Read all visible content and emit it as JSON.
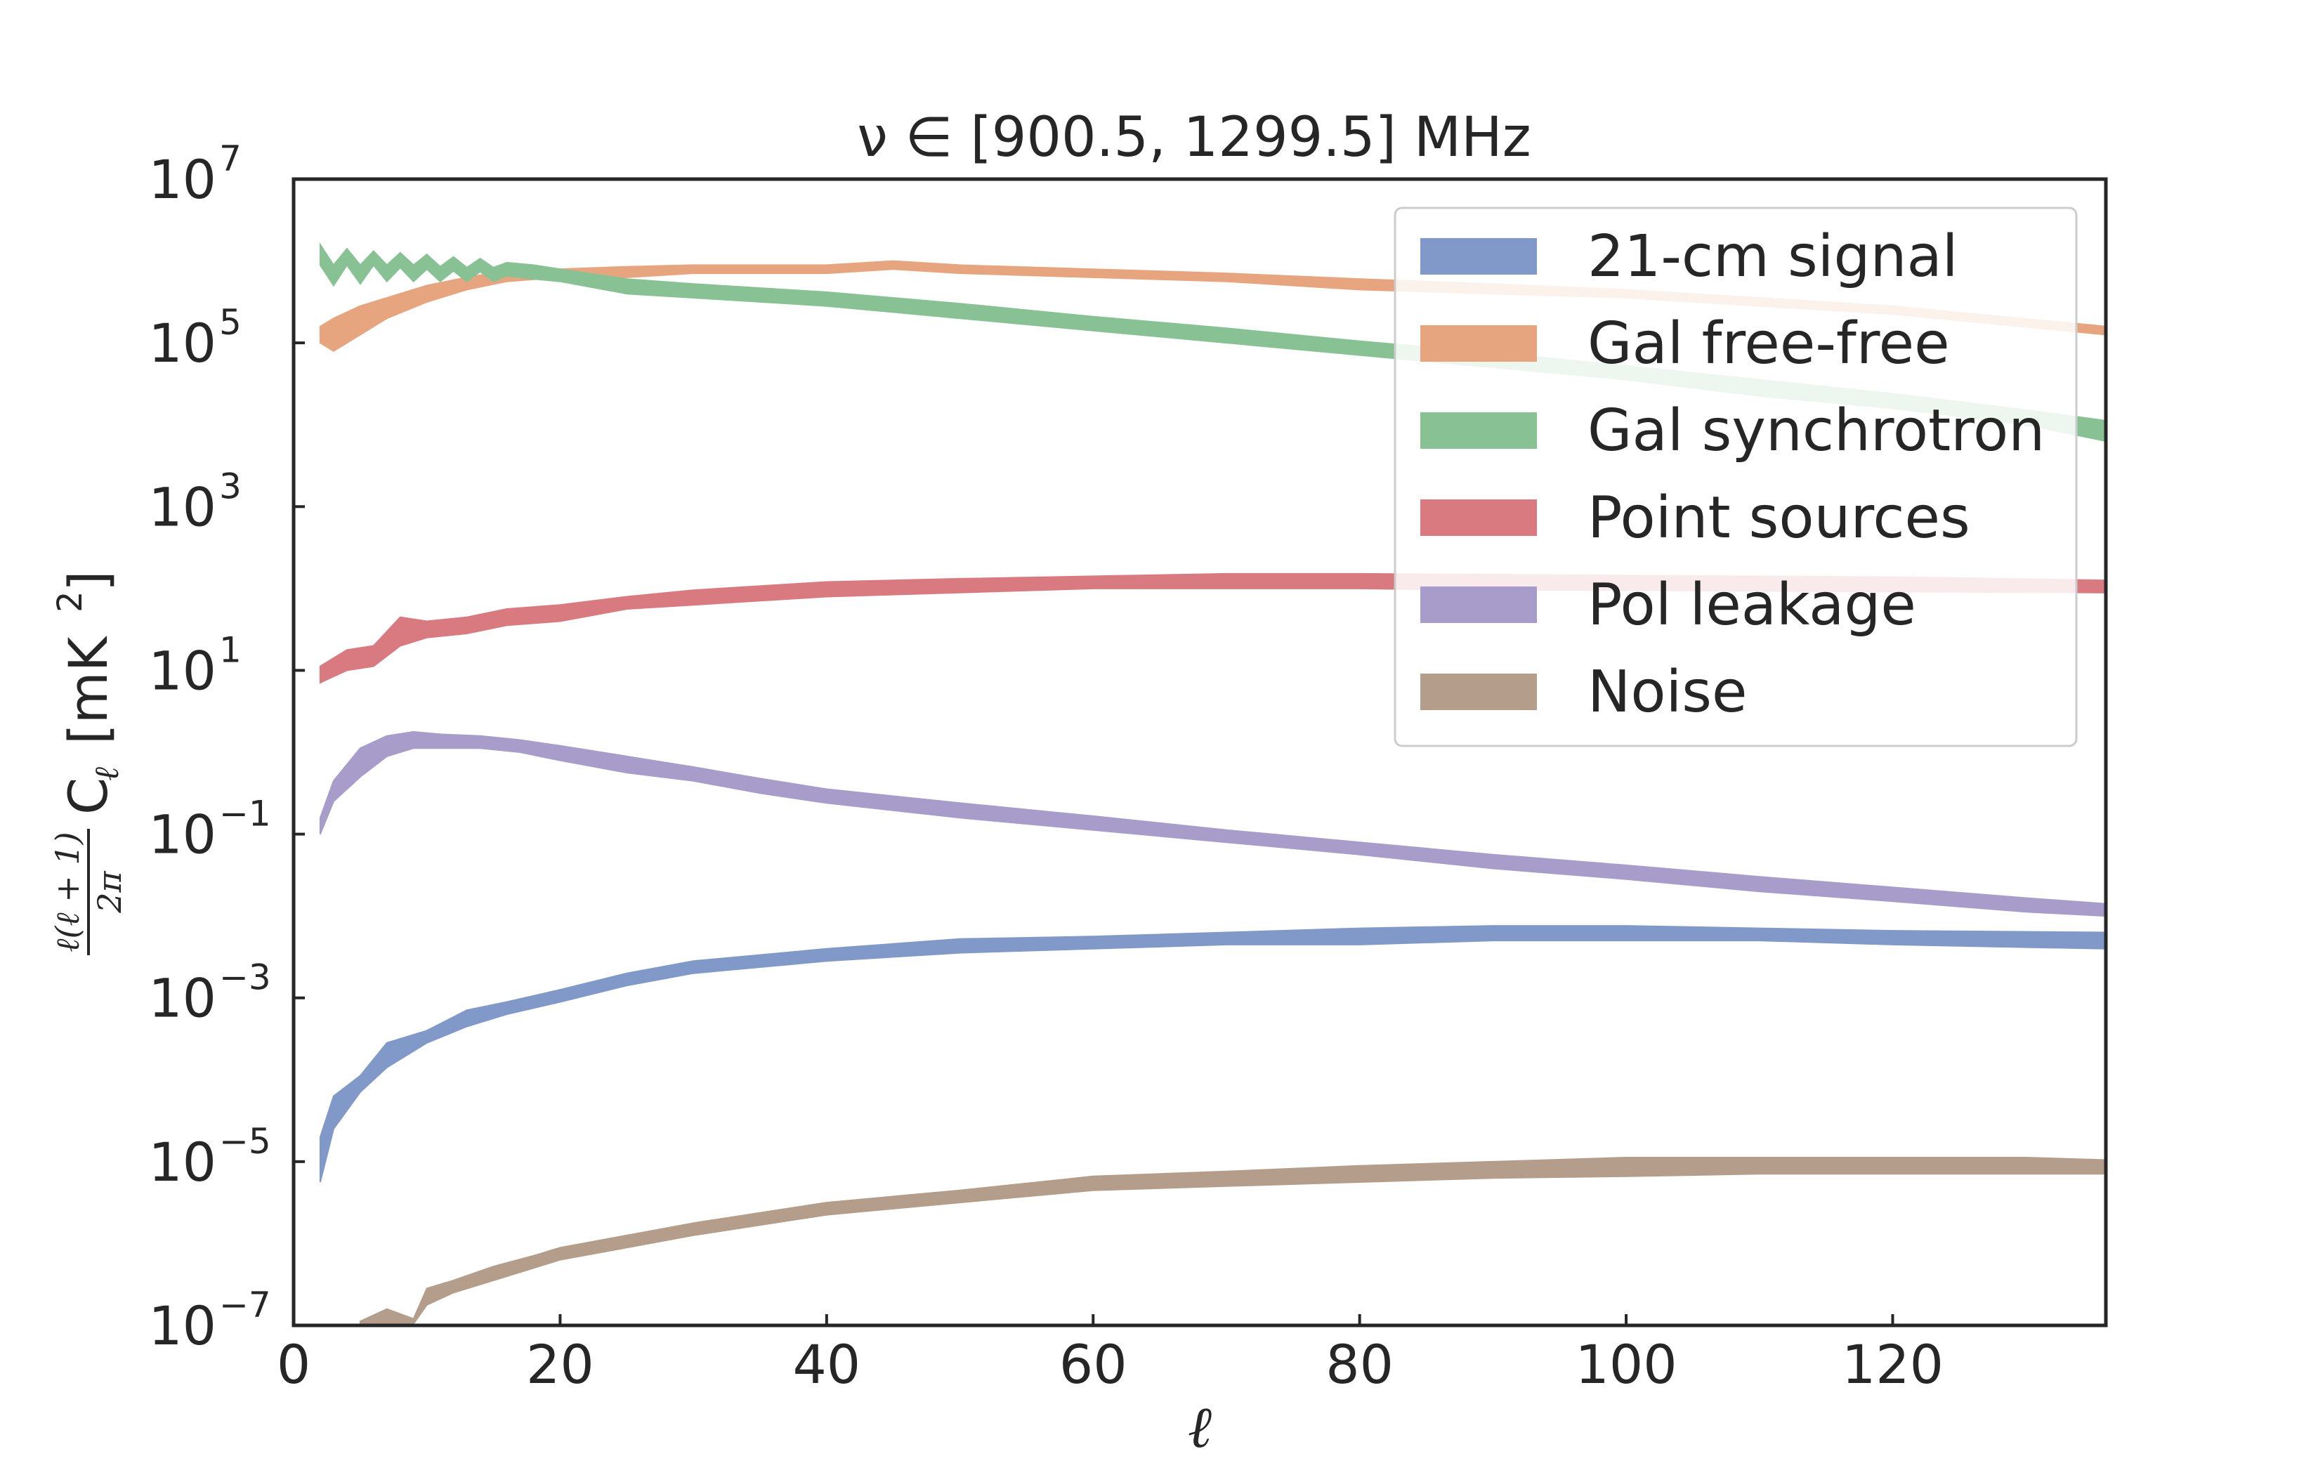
{
  "chart_data": {
    "type": "area",
    "title": "ν ∈ [900.5, 1299.5] MHz",
    "xlabel": "ℓ",
    "ylabel_fraction_top": "ℓ(ℓ + 1)",
    "ylabel_fraction_bottom": "2π",
    "ylabel_rest": "C",
    "ylabel_sub": "ℓ",
    "ylabel_units": "[mK",
    "ylabel_units_sup": "2",
    "ylabel_units_close": "]",
    "xlim": [
      0,
      136
    ],
    "ylim_log10": [
      -7,
      7
    ],
    "yscale": "log",
    "grid": false,
    "legend_position": "top-right",
    "x_ticks": [
      {
        "value": 0,
        "label": "0"
      },
      {
        "value": 20,
        "label": "20"
      },
      {
        "value": 40,
        "label": "40"
      },
      {
        "value": 60,
        "label": "60"
      },
      {
        "value": 80,
        "label": "80"
      },
      {
        "value": 100,
        "label": "100"
      },
      {
        "value": 120,
        "label": "120"
      }
    ],
    "y_ticks": [
      {
        "value": 7,
        "base": "10",
        "exp": "7"
      },
      {
        "value": 5,
        "base": "10",
        "exp": "5"
      },
      {
        "value": 3,
        "base": "10",
        "exp": "3"
      },
      {
        "value": 1,
        "base": "10",
        "exp": "1"
      },
      {
        "value": -1,
        "base": "10",
        "exp": "−1"
      },
      {
        "value": -3,
        "base": "10",
        "exp": "−3"
      },
      {
        "value": -5,
        "base": "10",
        "exp": "−5"
      },
      {
        "value": -7,
        "base": "10",
        "exp": "−7"
      }
    ],
    "band_note": "log10 values; each series drawn as a band between low and high",
    "series": [
      {
        "name": "21-cm signal",
        "color": "#8099c8",
        "x": [
          2,
          3,
          5,
          7,
          10,
          13,
          16,
          20,
          25,
          30,
          40,
          50,
          60,
          70,
          80,
          90,
          100,
          110,
          120,
          136
        ],
        "low": [
          -5.25,
          -4.6,
          -4.15,
          -3.85,
          -3.55,
          -3.35,
          -3.2,
          -3.05,
          -2.85,
          -2.7,
          -2.55,
          -2.45,
          -2.4,
          -2.35,
          -2.35,
          -2.3,
          -2.3,
          -2.3,
          -2.35,
          -2.4
        ],
        "high": [
          -4.7,
          -4.2,
          -3.95,
          -3.55,
          -3.4,
          -3.15,
          -3.05,
          -2.9,
          -2.7,
          -2.55,
          -2.4,
          -2.28,
          -2.25,
          -2.2,
          -2.15,
          -2.12,
          -2.12,
          -2.15,
          -2.18,
          -2.2
        ]
      },
      {
        "name": "Gal free-free",
        "color": "#e6a57e",
        "x": [
          2,
          3,
          5,
          7,
          10,
          13,
          16,
          20,
          25,
          30,
          40,
          45,
          50,
          60,
          70,
          80,
          90,
          100,
          110,
          120,
          136
        ],
        "low": [
          5.0,
          4.9,
          5.1,
          5.3,
          5.5,
          5.65,
          5.75,
          5.8,
          5.8,
          5.85,
          5.85,
          5.9,
          5.85,
          5.8,
          5.75,
          5.65,
          5.6,
          5.55,
          5.45,
          5.35,
          5.1
        ],
        "high": [
          5.2,
          5.3,
          5.45,
          5.55,
          5.7,
          5.8,
          5.88,
          5.9,
          5.93,
          5.95,
          5.95,
          6.0,
          5.95,
          5.9,
          5.85,
          5.78,
          5.72,
          5.65,
          5.55,
          5.45,
          5.2
        ]
      },
      {
        "name": "Gal synchrotron",
        "color": "#88c294",
        "x": [
          2,
          3,
          4,
          5,
          6,
          7,
          8,
          9,
          10,
          11,
          12,
          13,
          14,
          15,
          16,
          18,
          20,
          25,
          30,
          40,
          50,
          60,
          70,
          80,
          90,
          100,
          110,
          120,
          130,
          136
        ],
        "low": [
          5.95,
          5.7,
          5.95,
          5.72,
          5.95,
          5.75,
          5.92,
          5.75,
          5.9,
          5.75,
          5.88,
          5.75,
          5.87,
          5.75,
          5.82,
          5.78,
          5.75,
          5.6,
          5.55,
          5.45,
          5.3,
          5.15,
          5.0,
          4.85,
          4.7,
          4.55,
          4.35,
          4.2,
          4.0,
          3.8
        ],
        "high": [
          6.2,
          5.95,
          6.15,
          5.95,
          6.12,
          5.95,
          6.1,
          5.95,
          6.08,
          5.93,
          6.05,
          5.92,
          6.03,
          5.92,
          5.98,
          5.95,
          5.9,
          5.78,
          5.72,
          5.62,
          5.48,
          5.32,
          5.18,
          5.02,
          4.88,
          4.72,
          4.55,
          4.38,
          4.18,
          4.05
        ]
      },
      {
        "name": "Point sources",
        "color": "#d87a80",
        "x": [
          2,
          4,
          6,
          8,
          10,
          13,
          16,
          20,
          25,
          30,
          40,
          50,
          60,
          70,
          80,
          90,
          100,
          110,
          120,
          136
        ],
        "low": [
          0.85,
          1.0,
          1.05,
          1.3,
          1.4,
          1.45,
          1.55,
          1.6,
          1.75,
          1.8,
          1.9,
          1.95,
          2.0,
          2.0,
          2.0,
          1.98,
          1.98,
          1.97,
          1.96,
          1.95
        ],
        "high": [
          1.05,
          1.25,
          1.3,
          1.65,
          1.6,
          1.65,
          1.75,
          1.8,
          1.9,
          1.98,
          2.08,
          2.12,
          2.15,
          2.18,
          2.18,
          2.17,
          2.16,
          2.15,
          2.14,
          2.1
        ]
      },
      {
        "name": "Pol leakage",
        "color": "#a89ccb",
        "x": [
          2,
          3,
          5,
          7,
          9,
          11,
          14,
          17,
          20,
          25,
          30,
          35,
          40,
          50,
          60,
          70,
          80,
          90,
          100,
          110,
          120,
          130,
          136
        ],
        "low": [
          -1.0,
          -0.6,
          -0.3,
          -0.05,
          0.05,
          0.05,
          0.05,
          0.0,
          -0.1,
          -0.25,
          -0.35,
          -0.5,
          -0.62,
          -0.8,
          -0.95,
          -1.1,
          -1.25,
          -1.42,
          -1.55,
          -1.7,
          -1.82,
          -1.95,
          -2.0
        ],
        "high": [
          -0.8,
          -0.35,
          0.05,
          0.2,
          0.25,
          0.22,
          0.2,
          0.15,
          0.08,
          -0.05,
          -0.18,
          -0.32,
          -0.45,
          -0.62,
          -0.78,
          -0.95,
          -1.1,
          -1.25,
          -1.38,
          -1.52,
          -1.65,
          -1.78,
          -1.85
        ]
      },
      {
        "name": "Noise",
        "color": "#b49d8b",
        "x": [
          5,
          7,
          9,
          10,
          12,
          15,
          18,
          20,
          25,
          30,
          40,
          50,
          60,
          70,
          80,
          90,
          100,
          110,
          120,
          130,
          136
        ],
        "low": [
          -7.0,
          -6.98,
          -6.98,
          -6.75,
          -6.6,
          -6.45,
          -6.3,
          -6.2,
          -6.05,
          -5.9,
          -5.65,
          -5.5,
          -5.35,
          -5.3,
          -5.25,
          -5.2,
          -5.18,
          -5.15,
          -5.15,
          -5.15,
          -5.15
        ],
        "high": [
          -6.95,
          -6.8,
          -6.92,
          -6.55,
          -6.45,
          -6.28,
          -6.15,
          -6.05,
          -5.9,
          -5.75,
          -5.5,
          -5.35,
          -5.18,
          -5.12,
          -5.05,
          -5.0,
          -4.95,
          -4.95,
          -4.95,
          -4.95,
          -4.98
        ]
      }
    ]
  }
}
